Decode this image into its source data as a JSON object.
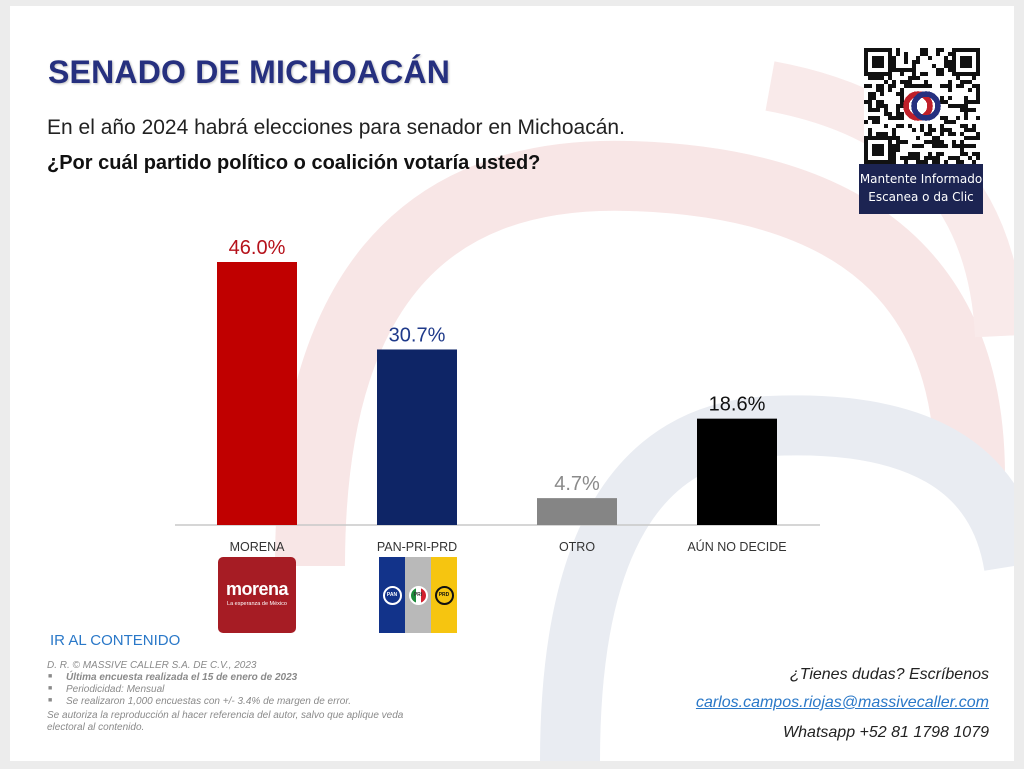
{
  "header": {
    "title": "SENADO DE MICHOACÁN",
    "subtitle": "En el año 2024 habrá elecciones para senador en Michoacán.",
    "question": "¿Por cuál partido político o coalición votaría usted?"
  },
  "qr": {
    "label_line1": "Mantente Informado",
    "label_line2": "Escanea o da Clic"
  },
  "colors": {
    "title": "#26307f",
    "morena": "#b5121b",
    "pan_pri_prd": "#0e2566",
    "otro": "#858585",
    "undecided": "#000000",
    "link": "#2a78c8"
  },
  "chart_data": {
    "type": "bar",
    "categories": [
      "MORENA",
      "PAN-PRI-PRD",
      "OTRO",
      "AÚN NO DECIDE"
    ],
    "values": [
      46.0,
      30.7,
      4.7,
      18.6
    ],
    "value_labels": [
      "46.0%",
      "30.7%",
      "4.7%",
      "18.6%"
    ],
    "label_colors": [
      "#b5121b",
      "#1f3a8a",
      "#8a8a8a",
      "#111111"
    ],
    "bar_colors": [
      "#c00000",
      "#0e2566",
      "#858585",
      "#000000"
    ],
    "ylim": [
      0,
      46
    ],
    "grid": false,
    "legend": "none"
  },
  "logos": {
    "morena_name": "morena",
    "morena_tagline": "La esperanza de México",
    "pan": "PAN",
    "pri": "PRI",
    "prd": "PRD"
  },
  "footer": {
    "link": "IR AL CONTENIDO",
    "copyright": "D. R. © MASSIVE CALLER S.A. DE C.V., 2023",
    "last_survey": "Última encuesta realizada el 15 de enero de 2023",
    "periodicity": "Periodicidad: Mensual",
    "sample": "Se realizaron 1,000 encuestas con +/- 3.4% de margen de error.",
    "authorization_1": "Se autoriza la reproducción al hacer referencia del autor, salvo que aplique veda",
    "authorization_2": "electoral al contenido."
  },
  "contact": {
    "question": "¿Tienes dudas? Escríbenos",
    "email": "carlos.campos.riojas@massivecaller.com",
    "whatsapp": "Whatsapp +52 81 1798 1079"
  }
}
